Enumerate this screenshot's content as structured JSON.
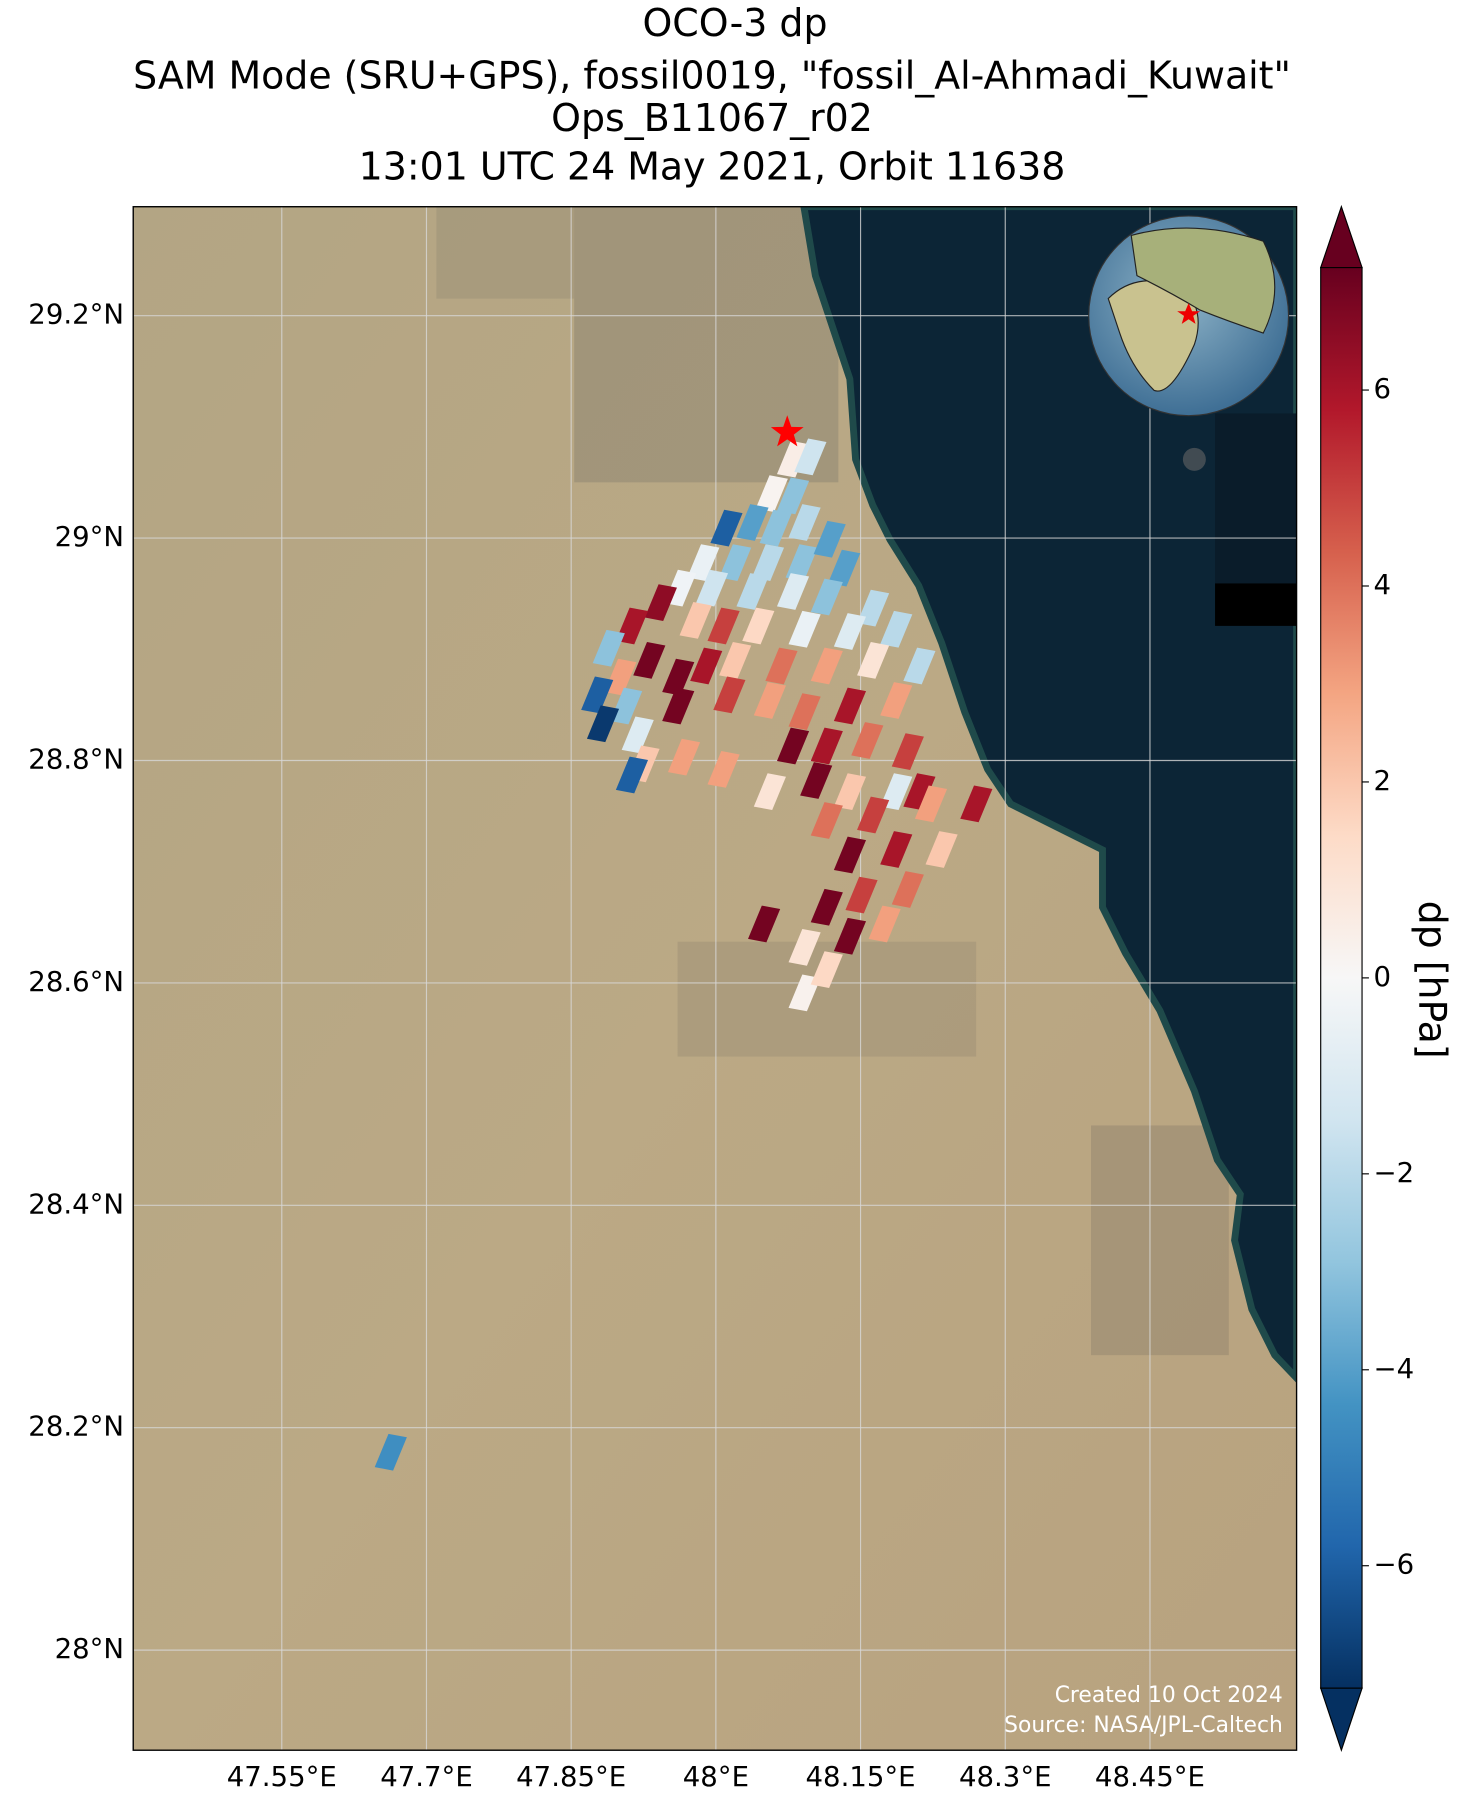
{
  "chart_data": {
    "type": "map",
    "title": [
      "OCO-3 dp",
      "SAM Mode (SRU+GPS), fossil0019, \"fossil_Al-Ahmadi_Kuwait\"",
      "Ops_B11067_r02",
      "13:01 UTC 24 May 2021, Orbit 11638"
    ],
    "xlim": [
      47.396,
      48.602
    ],
    "ylim": [
      27.91,
      29.298
    ],
    "xticks": [
      {
        "value": 47.55,
        "label": "47.55°E"
      },
      {
        "value": 47.7,
        "label": "47.7°E"
      },
      {
        "value": 47.85,
        "label": "47.85°E"
      },
      {
        "value": 48,
        "label": "48°E"
      },
      {
        "value": 48.15,
        "label": "48.15°E"
      },
      {
        "value": 48.3,
        "label": "48.3°E"
      },
      {
        "value": 48.45,
        "label": "48.45°E"
      }
    ],
    "yticks": [
      {
        "value": 28,
        "label": "28°N"
      },
      {
        "value": 28.2,
        "label": "28.2°N"
      },
      {
        "value": 28.4,
        "label": "28.4°N"
      },
      {
        "value": 28.6,
        "label": "28.6°N"
      },
      {
        "value": 28.8,
        "label": "28.8°N"
      },
      {
        "value": 29,
        "label": "29°N"
      },
      {
        "value": 29.2,
        "label": "29.2°N"
      }
    ],
    "grid": true,
    "soundings": {
      "lon": [
        48.08,
        48.098,
        48.058,
        48.08,
        48.038,
        48.062,
        48.092,
        48.011,
        47.987,
        48.02,
        48.054,
        48.089,
        48.118,
        48.133,
        47.963,
        47.996,
        48.038,
        48.08,
        48.115,
        48.163,
        47.943,
        47.913,
        47.889,
        47.979,
        48.008,
        48.044,
        48.092,
        48.139,
        48.187,
        47.931,
        47.961,
        47.901,
        47.877,
        47.907,
        47.99,
        48.02,
        48.068,
        48.115,
        48.163,
        48.211,
        47.883,
        47.919,
        47.961,
        48.014,
        48.056,
        48.092,
        48.139,
        48.187,
        47.925,
        47.913,
        47.967,
        48.008,
        48.08,
        48.115,
        48.157,
        48.199,
        48.056,
        48.104,
        48.139,
        48.187,
        48.211,
        48.115,
        48.163,
        48.223,
        48.27,
        48.139,
        48.187,
        48.234,
        48.115,
        48.151,
        48.199,
        48.05,
        48.092,
        48.139,
        48.175,
        48.092,
        48.115,
        47.663
      ],
      "lat": [
        29.071,
        29.073,
        29.04,
        29.038,
        29.014,
        29.009,
        29.014,
        29.009,
        28.978,
        28.978,
        28.978,
        28.978,
        28.999,
        28.973,
        28.955,
        28.955,
        28.952,
        28.952,
        28.947,
        28.937,
        28.942,
        28.921,
        28.901,
        28.926,
        28.921,
        28.921,
        28.918,
        28.916,
        28.918,
        28.89,
        28.875,
        28.875,
        28.859,
        28.849,
        28.885,
        28.89,
        28.885,
        28.885,
        28.89,
        28.885,
        28.833,
        28.823,
        28.849,
        28.859,
        28.854,
        28.844,
        28.849,
        28.854,
        28.797,
        28.787,
        28.803,
        28.792,
        28.813,
        28.813,
        28.818,
        28.808,
        28.772,
        28.782,
        28.772,
        28.772,
        28.772,
        28.746,
        28.751,
        28.761,
        28.761,
        28.715,
        28.72,
        28.72,
        28.668,
        28.679,
        28.684,
        28.653,
        28.632,
        28.642,
        28.653,
        28.591,
        28.612,
        28.178
      ],
      "values": [
        0.5,
        -1.5,
        0.2,
        -3,
        -4,
        -3,
        -2,
        -6,
        -0.5,
        -3,
        -2,
        -3,
        -4,
        -4,
        -0.3,
        -1.5,
        -2,
        -1,
        -3,
        -2,
        6.5,
        6,
        -3,
        2,
        5,
        1.5,
        -0.5,
        -1,
        -2,
        7,
        7,
        3,
        -6,
        -3,
        6,
        2,
        4,
        3,
        1,
        -2,
        -7,
        -1,
        7,
        5,
        3,
        4,
        6,
        3,
        2,
        -6,
        3,
        3,
        7,
        6,
        4,
        5,
        1,
        7,
        2,
        -1,
        6,
        4,
        5,
        3,
        6,
        7,
        6,
        2,
        7,
        5,
        4,
        7,
        1,
        7,
        3,
        0.3,
        1.5,
        -4.5
      ]
    },
    "site": {
      "lon": 48.074,
      "lat": 29.095,
      "color": "#ff0000"
    },
    "colorbar": {
      "label": "dp [hPa]",
      "cmap": "RdBu_r",
      "lim": [
        -7.25,
        7.25
      ],
      "ticks": [
        {
          "value": -6,
          "label": "−6"
        },
        {
          "value": -4,
          "label": "−4"
        },
        {
          "value": -2,
          "label": "−2"
        },
        0,
        2,
        4,
        6
      ]
    },
    "credits": [
      "Created 10 Oct 2024",
      "Source: NASA/JPL-Caltech"
    ]
  }
}
